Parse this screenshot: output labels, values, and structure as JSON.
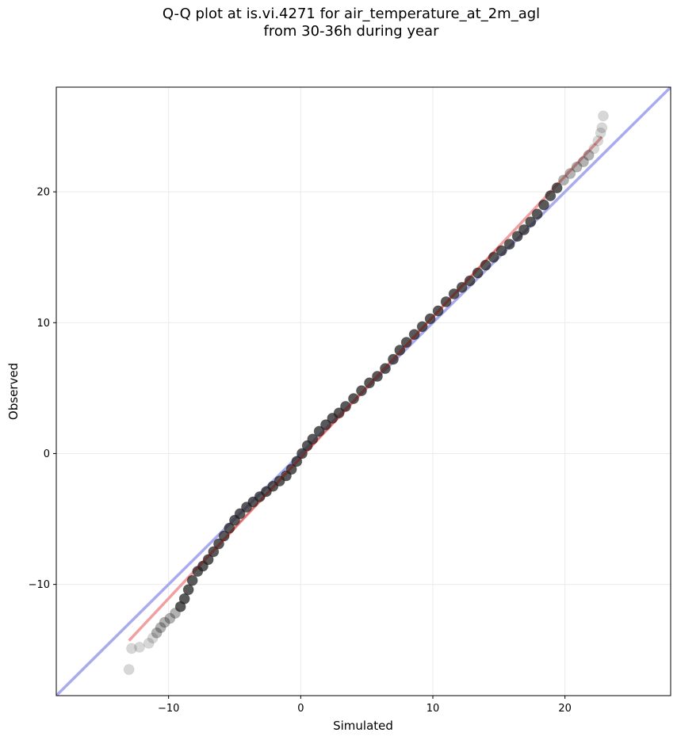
{
  "chart_data": {
    "type": "scatter",
    "title": [
      "Q-Q plot at is.vi.4271 for air_temperature_at_2m_agl",
      "from 30-36h during year"
    ],
    "xlabel": "Simulated",
    "ylabel": "Observed",
    "xlim": [
      -18.5,
      28
    ],
    "ylim": [
      -18.5,
      28
    ],
    "xticks": [
      -10,
      0,
      10,
      20
    ],
    "yticks": [
      -10,
      0,
      10,
      20
    ],
    "xtick_labels": [
      "−10",
      "0",
      "10",
      "20"
    ],
    "ytick_labels": [
      "−10",
      "0",
      "10",
      "20"
    ],
    "grid": true,
    "reference_line": {
      "name": "1:1",
      "color": "#aaaaee",
      "points": [
        [
          -18.5,
          -18.5
        ],
        [
          28,
          28
        ]
      ]
    },
    "fit_line": {
      "color": "#f0a0a0",
      "points": [
        [
          -13,
          -14.3
        ],
        [
          22.8,
          24.2
        ]
      ]
    },
    "quantile_points": [
      [
        -13.0,
        -16.5
      ],
      [
        -12.8,
        -14.9
      ],
      [
        -12.2,
        -14.8
      ],
      [
        -11.5,
        -14.5
      ],
      [
        -11.2,
        -14.1
      ],
      [
        -10.9,
        -13.7
      ],
      [
        -10.6,
        -13.3
      ],
      [
        -10.3,
        -12.9
      ],
      [
        -9.9,
        -12.6
      ],
      [
        -9.5,
        -12.2
      ],
      [
        -9.1,
        -11.7
      ],
      [
        -8.8,
        -11.1
      ],
      [
        -8.5,
        -10.4
      ],
      [
        -8.2,
        -9.7
      ],
      [
        -7.8,
        -9.0
      ],
      [
        -7.4,
        -8.6
      ],
      [
        -7.0,
        -8.1
      ],
      [
        -6.6,
        -7.5
      ],
      [
        -6.2,
        -6.9
      ],
      [
        -5.8,
        -6.3
      ],
      [
        -5.4,
        -5.7
      ],
      [
        -5.0,
        -5.1
      ],
      [
        -4.6,
        -4.6
      ],
      [
        -4.1,
        -4.1
      ],
      [
        -3.6,
        -3.7
      ],
      [
        -3.1,
        -3.3
      ],
      [
        -2.6,
        -2.9
      ],
      [
        -2.1,
        -2.5
      ],
      [
        -1.6,
        -2.1
      ],
      [
        -1.1,
        -1.7
      ],
      [
        -0.7,
        -1.2
      ],
      [
        -0.3,
        -0.6
      ],
      [
        0.1,
        0.0
      ],
      [
        0.5,
        0.6
      ],
      [
        0.9,
        1.1
      ],
      [
        1.4,
        1.7
      ],
      [
        1.9,
        2.2
      ],
      [
        2.4,
        2.7
      ],
      [
        2.9,
        3.1
      ],
      [
        3.4,
        3.6
      ],
      [
        4.0,
        4.2
      ],
      [
        4.6,
        4.8
      ],
      [
        5.2,
        5.4
      ],
      [
        5.8,
        5.9
      ],
      [
        6.4,
        6.5
      ],
      [
        7.0,
        7.2
      ],
      [
        7.5,
        7.9
      ],
      [
        8.0,
        8.5
      ],
      [
        8.6,
        9.1
      ],
      [
        9.2,
        9.7
      ],
      [
        9.8,
        10.3
      ],
      [
        10.4,
        10.9
      ],
      [
        11.0,
        11.6
      ],
      [
        11.6,
        12.2
      ],
      [
        12.2,
        12.7
      ],
      [
        12.8,
        13.2
      ],
      [
        13.4,
        13.8
      ],
      [
        14.0,
        14.4
      ],
      [
        14.6,
        15.0
      ],
      [
        15.2,
        15.5
      ],
      [
        15.8,
        16.0
      ],
      [
        16.4,
        16.6
      ],
      [
        16.9,
        17.1
      ],
      [
        17.4,
        17.7
      ],
      [
        17.9,
        18.3
      ],
      [
        18.4,
        19.0
      ],
      [
        18.9,
        19.7
      ],
      [
        19.4,
        20.3
      ],
      [
        19.9,
        20.9
      ],
      [
        20.4,
        21.4
      ],
      [
        20.9,
        21.9
      ],
      [
        21.4,
        22.3
      ],
      [
        21.8,
        22.8
      ],
      [
        22.2,
        23.3
      ],
      [
        22.5,
        23.9
      ],
      [
        22.7,
        24.5
      ],
      [
        22.8,
        24.9
      ],
      [
        22.9,
        25.8
      ]
    ]
  }
}
